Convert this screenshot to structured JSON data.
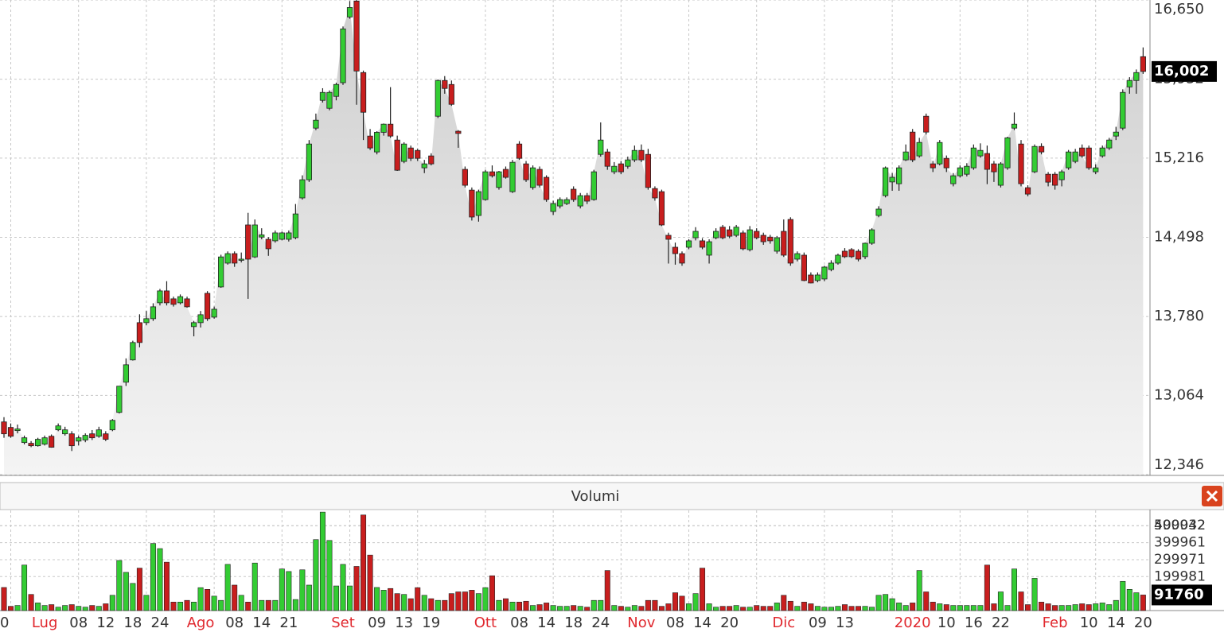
{
  "chart_data": {
    "type": "candlestick",
    "categories": [
      "0",
      null,
      null,
      null,
      null,
      null,
      "Lug",
      null,
      null,
      null,
      null,
      "08",
      null,
      null,
      null,
      "12",
      null,
      null,
      null,
      "18",
      null,
      null,
      null,
      "24",
      null,
      null,
      null,
      null,
      null,
      "Ago",
      null,
      null,
      null,
      null,
      "08",
      null,
      null,
      null,
      "14",
      null,
      null,
      null,
      "21",
      null,
      null,
      null,
      null,
      null,
      null,
      null,
      "Set",
      null,
      null,
      null,
      null,
      "09",
      null,
      null,
      null,
      "13",
      null,
      null,
      null,
      "19",
      null,
      null,
      null,
      null,
      null,
      null,
      null,
      "Ott",
      null,
      null,
      null,
      null,
      "08",
      null,
      null,
      null,
      "14",
      null,
      null,
      null,
      "18",
      null,
      null,
      null,
      "24",
      null,
      null,
      null,
      null,
      null,
      "Nov",
      null,
      null,
      null,
      null,
      "08",
      null,
      null,
      null,
      "14",
      null,
      null,
      null,
      "20",
      null,
      null,
      null,
      null,
      null,
      null,
      null,
      "Dic",
      null,
      null,
      null,
      null,
      "09",
      null,
      null,
      null,
      "13",
      null,
      null,
      null,
      null,
      null,
      null,
      null,
      null,
      null,
      "2020",
      null,
      null,
      null,
      null,
      "10",
      null,
      null,
      null,
      "16",
      null,
      null,
      null,
      "22",
      null,
      null,
      null,
      null,
      null,
      null,
      null,
      "Feb",
      null,
      null,
      null,
      null,
      "10",
      null,
      null,
      null,
      "14",
      null,
      null,
      null,
      "20"
    ],
    "candles": [
      [
        12824,
        12867,
        12680,
        12716
      ],
      [
        12774,
        12810,
        12680,
        12694
      ],
      [
        12745,
        12800,
        12720,
        12760
      ],
      [
        12637,
        12700,
        12620,
        12680
      ],
      [
        12630,
        12650,
        12595,
        12608
      ],
      [
        12608,
        12680,
        12600,
        12666
      ],
      [
        12622,
        12700,
        12610,
        12680
      ],
      [
        12694,
        12710,
        12590,
        12594
      ],
      [
        12752,
        12810,
        12740,
        12788
      ],
      [
        12716,
        12780,
        12700,
        12752
      ],
      [
        12716,
        12740,
        12560,
        12608
      ],
      [
        12650,
        12700,
        12610,
        12680
      ],
      [
        12660,
        12720,
        12640,
        12702
      ],
      [
        12716,
        12750,
        12660,
        12680
      ],
      [
        12694,
        12780,
        12680,
        12752
      ],
      [
        12716,
        12740,
        12650,
        12666
      ],
      [
        12752,
        12850,
        12740,
        12838
      ],
      [
        12910,
        13150,
        12900,
        13148
      ],
      [
        13184,
        13400,
        13150,
        13342
      ],
      [
        13386,
        13560,
        13380,
        13544
      ],
      [
        13724,
        13800,
        13500,
        13544
      ],
      [
        13724,
        13830,
        13700,
        13760
      ],
      [
        13760,
        13900,
        13740,
        13868
      ],
      [
        13904,
        14030,
        13880,
        14012
      ],
      [
        14012,
        14100,
        13880,
        13904
      ],
      [
        13940,
        13960,
        13870,
        13890
      ],
      [
        13904,
        13980,
        13890,
        13960
      ],
      [
        13940,
        13960,
        13860,
        13868
      ],
      [
        13688,
        13740,
        13600,
        13724
      ],
      [
        13724,
        13830,
        13680,
        13796
      ],
      [
        13990,
        14010,
        13740,
        13760
      ],
      [
        13774,
        13870,
        13760,
        13846
      ],
      [
        14048,
        14340,
        14040,
        14320
      ],
      [
        14264,
        14370,
        14250,
        14350
      ],
      [
        14350,
        14370,
        14230,
        14264
      ],
      [
        14290,
        14360,
        14270,
        14300
      ],
      [
        14610,
        14720,
        13940,
        14300
      ],
      [
        14320,
        14660,
        14310,
        14610
      ],
      [
        14500,
        14580,
        14480,
        14520
      ],
      [
        14480,
        14500,
        14330,
        14394
      ],
      [
        14466,
        14560,
        14450,
        14538
      ],
      [
        14480,
        14550,
        14470,
        14538
      ],
      [
        14480,
        14560,
        14460,
        14538
      ],
      [
        14495,
        14800,
        14480,
        14710
      ],
      [
        14855,
        15060,
        14840,
        15020
      ],
      [
        15020,
        15380,
        15000,
        15344
      ],
      [
        15488,
        15620,
        15470,
        15560
      ],
      [
        15740,
        15850,
        15720,
        15812
      ],
      [
        15668,
        15830,
        15650,
        15812
      ],
      [
        15776,
        15900,
        15740,
        15884
      ],
      [
        15900,
        16410,
        15880,
        16388
      ],
      [
        16496,
        16640,
        16480,
        16582
      ],
      [
        16640,
        16650,
        15700,
        16006
      ],
      [
        15992,
        16010,
        15380,
        15632
      ],
      [
        15416,
        15480,
        15290,
        15308
      ],
      [
        15272,
        15460,
        15250,
        15450
      ],
      [
        15450,
        15530,
        15420,
        15524
      ],
      [
        15524,
        15860,
        15400,
        15416
      ],
      [
        15380,
        15420,
        15100,
        15106
      ],
      [
        15186,
        15360,
        15170,
        15344
      ],
      [
        15308,
        15330,
        15190,
        15214
      ],
      [
        15286,
        15300,
        15190,
        15214
      ],
      [
        15128,
        15200,
        15080,
        15164
      ],
      [
        15236,
        15260,
        15150,
        15164
      ],
      [
        15596,
        15930,
        15580,
        15920
      ],
      [
        15920,
        15960,
        15800,
        15848
      ],
      [
        15884,
        15920,
        15690,
        15704
      ],
      [
        15460,
        15470,
        15310,
        15440
      ],
      [
        15114,
        15140,
        14950,
        14970
      ],
      [
        14926,
        14950,
        14650,
        14682
      ],
      [
        14696,
        14930,
        14640,
        14912
      ],
      [
        14840,
        15110,
        14830,
        15092
      ],
      [
        15092,
        15150,
        15040,
        15056
      ],
      [
        14950,
        15100,
        14930,
        15092
      ],
      [
        15114,
        15140,
        15030,
        15042
      ],
      [
        14912,
        15200,
        14900,
        15178
      ],
      [
        15344,
        15370,
        15200,
        15214
      ],
      [
        15164,
        15190,
        15000,
        15020
      ],
      [
        14950,
        15150,
        14930,
        15128
      ],
      [
        15114,
        15140,
        14950,
        14970
      ],
      [
        15042,
        15060,
        14820,
        14840
      ],
      [
        14732,
        14830,
        14700,
        14804
      ],
      [
        14782,
        14860,
        14760,
        14840
      ],
      [
        14804,
        14860,
        14790,
        14840
      ],
      [
        14934,
        14960,
        14820,
        14840
      ],
      [
        14782,
        14900,
        14760,
        14876
      ],
      [
        14876,
        14900,
        14800,
        14826
      ],
      [
        14840,
        15110,
        14830,
        15092
      ],
      [
        15250,
        15540,
        15230,
        15380
      ],
      [
        15272,
        15300,
        15110,
        15142
      ],
      [
        15092,
        15180,
        15070,
        15142
      ],
      [
        15164,
        15190,
        15070,
        15092
      ],
      [
        15142,
        15230,
        15120,
        15200
      ],
      [
        15200,
        15330,
        15180,
        15286
      ],
      [
        15286,
        15340,
        15180,
        15200
      ],
      [
        15250,
        15300,
        14930,
        14950
      ],
      [
        14940,
        14960,
        14830,
        14855
      ],
      [
        14912,
        14930,
        14600,
        14610
      ],
      [
        14516,
        14540,
        14260,
        14480
      ],
      [
        14408,
        14450,
        14250,
        14350
      ],
      [
        14350,
        14370,
        14240,
        14264
      ],
      [
        14408,
        14480,
        14390,
        14466
      ],
      [
        14494,
        14590,
        14470,
        14552
      ],
      [
        14466,
        14490,
        14390,
        14408
      ],
      [
        14336,
        14480,
        14260,
        14458
      ],
      [
        14494,
        14580,
        14480,
        14552
      ],
      [
        14590,
        14610,
        14480,
        14494
      ],
      [
        14566,
        14600,
        14490,
        14508
      ],
      [
        14516,
        14610,
        14500,
        14590
      ],
      [
        14538,
        14560,
        14380,
        14394
      ],
      [
        14386,
        14600,
        14370,
        14566
      ],
      [
        14552,
        14580,
        14480,
        14494
      ],
      [
        14516,
        14540,
        14430,
        14458
      ],
      [
        14500,
        14520,
        14440,
        14466
      ],
      [
        14372,
        14510,
        14350,
        14494
      ],
      [
        14552,
        14660,
        14320,
        14336
      ],
      [
        14660,
        14680,
        14240,
        14264
      ],
      [
        14300,
        14370,
        14280,
        14350
      ],
      [
        14336,
        14360,
        14100,
        14106
      ],
      [
        14156,
        14180,
        14080,
        14084
      ],
      [
        14106,
        14180,
        14090,
        14156
      ],
      [
        14120,
        14240,
        14100,
        14228
      ],
      [
        14206,
        14290,
        14190,
        14264
      ],
      [
        14264,
        14350,
        14250,
        14336
      ],
      [
        14372,
        14400,
        14310,
        14322
      ],
      [
        14386,
        14400,
        14310,
        14322
      ],
      [
        14372,
        14390,
        14280,
        14300
      ],
      [
        14322,
        14450,
        14300,
        14444
      ],
      [
        14444,
        14580,
        14430,
        14566
      ],
      [
        14696,
        14780,
        14680,
        14754
      ],
      [
        14876,
        15140,
        14860,
        15128
      ],
      [
        15000,
        15080,
        14920,
        15042
      ],
      [
        14984,
        15150,
        14920,
        15128
      ],
      [
        15200,
        15340,
        15190,
        15272
      ],
      [
        15452,
        15480,
        15180,
        15200
      ],
      [
        15236,
        15400,
        15220,
        15358
      ],
      [
        15596,
        15620,
        15430,
        15452
      ],
      [
        15164,
        15190,
        15090,
        15128
      ],
      [
        15164,
        15380,
        15150,
        15358
      ],
      [
        15214,
        15240,
        15090,
        15128
      ],
      [
        14984,
        15080,
        14960,
        15056
      ],
      [
        15056,
        15150,
        15040,
        15128
      ],
      [
        15070,
        15170,
        15050,
        15142
      ],
      [
        15128,
        15340,
        15110,
        15308
      ],
      [
        15236,
        15350,
        15220,
        15286
      ],
      [
        15258,
        15330,
        14980,
        15114
      ],
      [
        15164,
        15190,
        15000,
        15092
      ],
      [
        14970,
        15180,
        14950,
        15164
      ],
      [
        15128,
        15410,
        15110,
        15400
      ],
      [
        15488,
        15630,
        15470,
        15524
      ],
      [
        15344,
        15380,
        14960,
        14984
      ],
      [
        14948,
        14970,
        14870,
        14890
      ],
      [
        15092,
        15340,
        15080,
        15322
      ],
      [
        15322,
        15350,
        15250,
        15272
      ],
      [
        15070,
        15090,
        14960,
        14998
      ],
      [
        15070,
        15090,
        14930,
        14970
      ],
      [
        15020,
        15110,
        14960,
        15092
      ],
      [
        15128,
        15290,
        15110,
        15272
      ],
      [
        15186,
        15300,
        15170,
        15272
      ],
      [
        15308,
        15340,
        15220,
        15236
      ],
      [
        15308,
        15330,
        15110,
        15128
      ],
      [
        15092,
        15160,
        15070,
        15128
      ],
      [
        15236,
        15330,
        15220,
        15308
      ],
      [
        15308,
        15400,
        15290,
        15380
      ],
      [
        15416,
        15500,
        15380,
        15452
      ],
      [
        15488,
        15840,
        15470,
        15812
      ],
      [
        15862,
        15950,
        15800,
        15920
      ],
      [
        15920,
        16020,
        15800,
        15992
      ],
      [
        16136,
        16220,
        15980,
        16002
      ]
    ],
    "up_color": "#33cc33",
    "down_color": "#c81e1e",
    "ylim": [
      12346,
      16650
    ],
    "yticks": [
      {
        "value": 12346,
        "label": "12,346"
      },
      {
        "value": 13064,
        "label": "13,064"
      },
      {
        "value": 13780,
        "label": "13,780"
      },
      {
        "value": 14498,
        "label": "14,498"
      },
      {
        "value": 15216,
        "label": "15,216"
      },
      {
        "value": 15932,
        "label": "15,932"
      },
      {
        "value": 16650,
        "label": "16,650"
      }
    ],
    "last_price": {
      "value": 16002,
      "label": "16,002"
    },
    "grid": true,
    "volume": {
      "title": "Volumi",
      "values": [
        136000,
        25000,
        30000,
        268000,
        95000,
        45000,
        30000,
        35000,
        20000,
        30000,
        35000,
        25000,
        20000,
        30000,
        25000,
        40000,
        90000,
        295000,
        225000,
        160000,
        250000,
        90000,
        395000,
        365000,
        285000,
        50000,
        50000,
        60000,
        50000,
        135000,
        125000,
        85000,
        60000,
        272000,
        150000,
        90000,
        50000,
        280000,
        60000,
        60000,
        60000,
        245000,
        230000,
        65000,
        240000,
        150000,
        418000,
        580000,
        413000,
        145000,
        272000,
        145000,
        260000,
        563000,
        327000,
        136000,
        120000,
        130000,
        100000,
        95000,
        70000,
        135000,
        90000,
        70000,
        60000,
        60000,
        100000,
        110000,
        110000,
        120000,
        100000,
        135000,
        205000,
        60000,
        70000,
        50000,
        50000,
        55000,
        30000,
        35000,
        45000,
        30000,
        25000,
        25000,
        30000,
        25000,
        20000,
        60000,
        60000,
        236000,
        30000,
        25000,
        20000,
        30000,
        25000,
        60000,
        60000,
        25000,
        40000,
        105000,
        85000,
        40000,
        100000,
        250000,
        40000,
        20000,
        25000,
        25000,
        30000,
        20000,
        20000,
        30000,
        25000,
        25000,
        45000,
        90000,
        55000,
        25000,
        50000,
        40000,
        25000,
        20000,
        20000,
        25000,
        35000,
        25000,
        25000,
        25000,
        20000,
        90000,
        95000,
        70000,
        45000,
        30000,
        45000,
        236000,
        110000,
        50000,
        40000,
        35000,
        30000,
        30000,
        30000,
        30000,
        30000,
        268000,
        40000,
        110000,
        30000,
        245000,
        110000,
        35000,
        190000,
        50000,
        40000,
        30000,
        30000,
        30000,
        35000,
        40000,
        35000,
        40000,
        45000,
        35000,
        60000,
        172000,
        125000,
        105000,
        91760
      ],
      "ylim": [
        0,
        590000
      ],
      "yticks": [
        199981,
        299971,
        399961,
        499932,
        500042
      ],
      "last_value": 91760
    }
  }
}
